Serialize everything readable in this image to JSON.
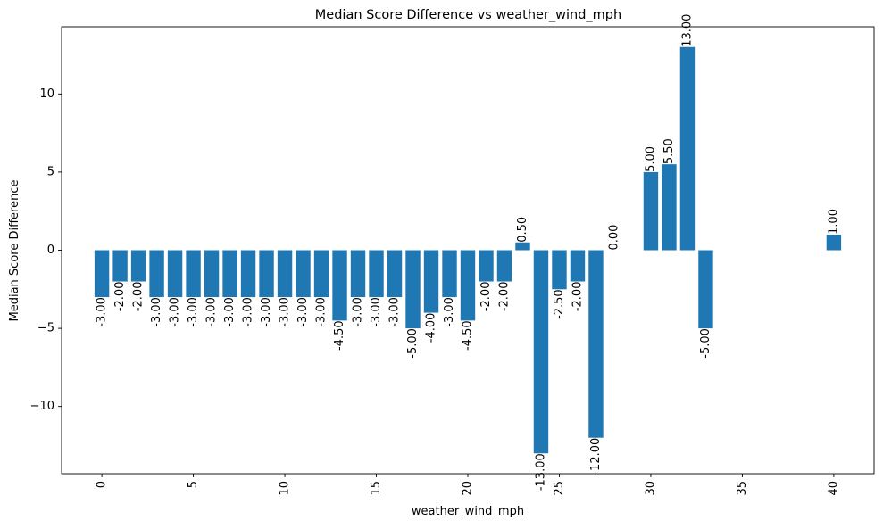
{
  "chart_data": {
    "type": "bar",
    "title": "Median Score Difference vs weather_wind_mph",
    "xlabel": "weather_wind_mph",
    "ylabel": "Median Score Difference",
    "xlim": [
      -2.2,
      42.2
    ],
    "ylim": [
      -14.3,
      14.3
    ],
    "xticks": [
      0,
      5,
      10,
      15,
      20,
      25,
      30,
      35,
      40
    ],
    "xtick_labels": [
      "0",
      "5",
      "10",
      "15",
      "20",
      "25",
      "30",
      "35",
      "40"
    ],
    "yticks": [
      -10,
      -5,
      0,
      5,
      10
    ],
    "ytick_labels": [
      "−10",
      "−5",
      "0",
      "5",
      "10"
    ],
    "bar_color": "#1f77b4",
    "bar_width": 0.8,
    "grid": false,
    "x": [
      0,
      1,
      2,
      3,
      4,
      5,
      6,
      7,
      8,
      9,
      10,
      11,
      12,
      13,
      14,
      15,
      16,
      17,
      18,
      19,
      20,
      21,
      22,
      23,
      24,
      25,
      26,
      27,
      28,
      30,
      31,
      32,
      33,
      40
    ],
    "values": [
      -3,
      -2,
      -2,
      -3,
      -3,
      -3,
      -3,
      -3,
      -3,
      -3,
      -3,
      -3,
      -3,
      -4.5,
      -3,
      -3,
      -3,
      -5,
      -4,
      -3,
      -4.5,
      -2,
      -2,
      0.5,
      -13,
      -2.5,
      -2,
      -12,
      0,
      5,
      5.5,
      13,
      -5,
      1
    ],
    "value_labels": [
      "-3.00",
      "-2.00",
      "-2.00",
      "-3.00",
      "-3.00",
      "-3.00",
      "-3.00",
      "-3.00",
      "-3.00",
      "-3.00",
      "-3.00",
      "-3.00",
      "-3.00",
      "-4.50",
      "-3.00",
      "-3.00",
      "-3.00",
      "-5.00",
      "-4.00",
      "-3.00",
      "-4.50",
      "-2.00",
      "-2.00",
      "0.50",
      "-13.00",
      "-2.50",
      "-2.00",
      "-12.00",
      "0.00",
      "5.00",
      "5.50",
      "13.00",
      "-5.00",
      "1.00"
    ]
  }
}
